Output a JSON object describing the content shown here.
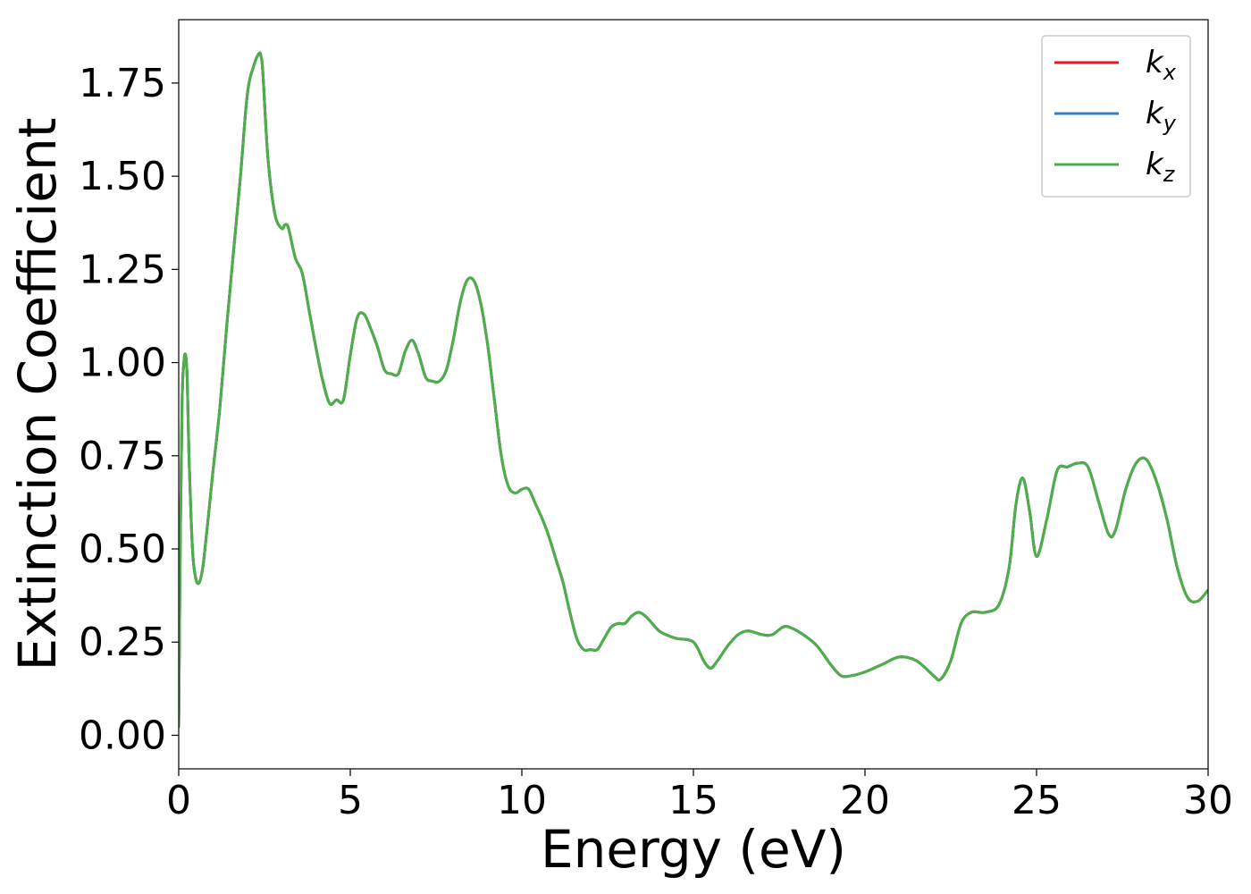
{
  "chart_data": {
    "type": "line",
    "title": "",
    "xlabel": "Energy (eV)",
    "ylabel": "Extinction Coefficient",
    "xlim": [
      0,
      30
    ],
    "ylim": [
      -0.09,
      1.92
    ],
    "xticks": [
      "0",
      "5",
      "10",
      "15",
      "20",
      "25",
      "30"
    ],
    "yticks": [
      "0.00",
      "0.25",
      "0.50",
      "0.75",
      "1.00",
      "1.25",
      "1.50",
      "1.75"
    ],
    "grid": false,
    "legend_position": "top-right",
    "legend": [
      {
        "base": "k",
        "sub": "x"
      },
      {
        "base": "k",
        "sub": "y"
      },
      {
        "base": "k",
        "sub": "z"
      }
    ],
    "series": [
      {
        "key": "kx",
        "color": "#e41a1c",
        "x": [
          0,
          0.05,
          0.1,
          0.15,
          0.2,
          0.25,
          0.3,
          0.4,
          0.5,
          0.6,
          0.7,
          0.8,
          0.9,
          1.0,
          1.2,
          1.4,
          1.6,
          1.8,
          2.0,
          2.2,
          2.35,
          2.4,
          2.45,
          2.6,
          2.8,
          3.0,
          3.1,
          3.2,
          3.4,
          3.6,
          3.8,
          4.0,
          4.2,
          4.4,
          4.6,
          4.8,
          5.0,
          5.2,
          5.4,
          5.6,
          5.8,
          6.0,
          6.2,
          6.4,
          6.6,
          6.8,
          7.0,
          7.2,
          7.4,
          7.6,
          7.8,
          8.0,
          8.2,
          8.4,
          8.6,
          8.8,
          9.0,
          9.2,
          9.4,
          9.6,
          9.8,
          10.0,
          10.2,
          10.4,
          10.6,
          10.8,
          11.0,
          11.2,
          11.4,
          11.6,
          11.8,
          12.0,
          12.2,
          12.4,
          12.6,
          12.8,
          13.0,
          13.2,
          13.4,
          13.6,
          13.8,
          14.0,
          14.2,
          14.5,
          15.0,
          15.3,
          15.5,
          15.7,
          16.0,
          16.3,
          16.6,
          17.0,
          17.3,
          17.6,
          17.8,
          18.2,
          18.6,
          19.0,
          19.3,
          19.6,
          20.0,
          20.5,
          21.0,
          21.5,
          22.0,
          22.2,
          22.5,
          22.8,
          23.1,
          23.5,
          23.9,
          24.2,
          24.4,
          24.6,
          24.8,
          25.0,
          25.3,
          25.6,
          25.9,
          26.2,
          26.5,
          26.8,
          27.1,
          27.3,
          27.6,
          27.9,
          28.2,
          28.5,
          28.8,
          29.1,
          29.4,
          29.7,
          30.0
        ],
        "y": [
          0.02,
          0.55,
          0.9,
          1.0,
          1.02,
          0.95,
          0.75,
          0.5,
          0.42,
          0.41,
          0.45,
          0.53,
          0.62,
          0.71,
          0.88,
          1.1,
          1.3,
          1.5,
          1.72,
          1.8,
          1.83,
          1.82,
          1.78,
          1.55,
          1.4,
          1.36,
          1.37,
          1.36,
          1.28,
          1.24,
          1.14,
          1.04,
          0.95,
          0.89,
          0.9,
          0.9,
          1.02,
          1.12,
          1.13,
          1.09,
          1.04,
          0.98,
          0.97,
          0.97,
          1.03,
          1.06,
          1.02,
          0.96,
          0.95,
          0.95,
          0.98,
          1.06,
          1.16,
          1.22,
          1.22,
          1.16,
          1.05,
          0.9,
          0.75,
          0.67,
          0.65,
          0.66,
          0.66,
          0.62,
          0.58,
          0.53,
          0.47,
          0.41,
          0.33,
          0.26,
          0.23,
          0.23,
          0.23,
          0.26,
          0.29,
          0.3,
          0.3,
          0.32,
          0.33,
          0.32,
          0.3,
          0.28,
          0.27,
          0.26,
          0.25,
          0.2,
          0.18,
          0.2,
          0.24,
          0.27,
          0.28,
          0.27,
          0.27,
          0.29,
          0.29,
          0.27,
          0.24,
          0.19,
          0.16,
          0.16,
          0.17,
          0.19,
          0.21,
          0.2,
          0.16,
          0.15,
          0.2,
          0.3,
          0.33,
          0.33,
          0.35,
          0.45,
          0.62,
          0.69,
          0.6,
          0.48,
          0.58,
          0.71,
          0.72,
          0.73,
          0.72,
          0.63,
          0.54,
          0.55,
          0.66,
          0.73,
          0.74,
          0.68,
          0.58,
          0.45,
          0.37,
          0.36,
          0.39
        ]
      },
      {
        "key": "ky",
        "color": "#377eb8",
        "x": [
          0,
          0.05,
          0.1,
          0.15,
          0.2,
          0.25,
          0.3,
          0.4,
          0.5,
          0.6,
          0.7,
          0.8,
          0.9,
          1.0,
          1.2,
          1.4,
          1.6,
          1.8,
          2.0,
          2.2,
          2.35,
          2.4,
          2.45,
          2.6,
          2.8,
          3.0,
          3.1,
          3.2,
          3.4,
          3.6,
          3.8,
          4.0,
          4.2,
          4.4,
          4.6,
          4.8,
          5.0,
          5.2,
          5.4,
          5.6,
          5.8,
          6.0,
          6.2,
          6.4,
          6.6,
          6.8,
          7.0,
          7.2,
          7.4,
          7.6,
          7.8,
          8.0,
          8.2,
          8.4,
          8.6,
          8.8,
          9.0,
          9.2,
          9.4,
          9.6,
          9.8,
          10.0,
          10.2,
          10.4,
          10.6,
          10.8,
          11.0,
          11.2,
          11.4,
          11.6,
          11.8,
          12.0,
          12.2,
          12.4,
          12.6,
          12.8,
          13.0,
          13.2,
          13.4,
          13.6,
          13.8,
          14.0,
          14.2,
          14.5,
          15.0,
          15.3,
          15.5,
          15.7,
          16.0,
          16.3,
          16.6,
          17.0,
          17.3,
          17.6,
          17.8,
          18.2,
          18.6,
          19.0,
          19.3,
          19.6,
          20.0,
          20.5,
          21.0,
          21.5,
          22.0,
          22.2,
          22.5,
          22.8,
          23.1,
          23.5,
          23.9,
          24.2,
          24.4,
          24.6,
          24.8,
          25.0,
          25.3,
          25.6,
          25.9,
          26.2,
          26.5,
          26.8,
          27.1,
          27.3,
          27.6,
          27.9,
          28.2,
          28.5,
          28.8,
          29.1,
          29.4,
          29.7,
          30.0
        ],
        "y": [
          0.02,
          0.55,
          0.9,
          1.0,
          1.02,
          0.95,
          0.75,
          0.5,
          0.42,
          0.41,
          0.45,
          0.53,
          0.62,
          0.71,
          0.88,
          1.1,
          1.3,
          1.5,
          1.72,
          1.8,
          1.83,
          1.82,
          1.78,
          1.55,
          1.4,
          1.36,
          1.37,
          1.36,
          1.28,
          1.24,
          1.14,
          1.04,
          0.95,
          0.89,
          0.9,
          0.9,
          1.02,
          1.12,
          1.13,
          1.09,
          1.04,
          0.98,
          0.97,
          0.97,
          1.03,
          1.06,
          1.02,
          0.96,
          0.95,
          0.95,
          0.98,
          1.06,
          1.16,
          1.22,
          1.22,
          1.16,
          1.05,
          0.9,
          0.75,
          0.67,
          0.65,
          0.66,
          0.66,
          0.62,
          0.58,
          0.53,
          0.47,
          0.41,
          0.33,
          0.26,
          0.23,
          0.23,
          0.23,
          0.26,
          0.29,
          0.3,
          0.3,
          0.32,
          0.33,
          0.32,
          0.3,
          0.28,
          0.27,
          0.26,
          0.25,
          0.2,
          0.18,
          0.2,
          0.24,
          0.27,
          0.28,
          0.27,
          0.27,
          0.29,
          0.29,
          0.27,
          0.24,
          0.19,
          0.16,
          0.16,
          0.17,
          0.19,
          0.21,
          0.2,
          0.16,
          0.15,
          0.2,
          0.3,
          0.33,
          0.33,
          0.35,
          0.45,
          0.62,
          0.69,
          0.6,
          0.48,
          0.58,
          0.71,
          0.72,
          0.73,
          0.72,
          0.63,
          0.54,
          0.55,
          0.66,
          0.73,
          0.74,
          0.68,
          0.58,
          0.45,
          0.37,
          0.36,
          0.39
        ]
      },
      {
        "key": "kz",
        "color": "#4daf4a",
        "x": [
          0,
          0.05,
          0.1,
          0.15,
          0.2,
          0.25,
          0.3,
          0.4,
          0.5,
          0.6,
          0.7,
          0.8,
          0.9,
          1.0,
          1.2,
          1.4,
          1.6,
          1.8,
          2.0,
          2.2,
          2.35,
          2.4,
          2.45,
          2.6,
          2.8,
          3.0,
          3.1,
          3.2,
          3.4,
          3.6,
          3.8,
          4.0,
          4.2,
          4.4,
          4.6,
          4.8,
          5.0,
          5.2,
          5.4,
          5.6,
          5.8,
          6.0,
          6.2,
          6.4,
          6.6,
          6.8,
          7.0,
          7.2,
          7.4,
          7.6,
          7.8,
          8.0,
          8.2,
          8.4,
          8.6,
          8.8,
          9.0,
          9.2,
          9.4,
          9.6,
          9.8,
          10.0,
          10.2,
          10.4,
          10.6,
          10.8,
          11.0,
          11.2,
          11.4,
          11.6,
          11.8,
          12.0,
          12.2,
          12.4,
          12.6,
          12.8,
          13.0,
          13.2,
          13.4,
          13.6,
          13.8,
          14.0,
          14.2,
          14.5,
          15.0,
          15.3,
          15.5,
          15.7,
          16.0,
          16.3,
          16.6,
          17.0,
          17.3,
          17.6,
          17.8,
          18.2,
          18.6,
          19.0,
          19.3,
          19.6,
          20.0,
          20.5,
          21.0,
          21.5,
          22.0,
          22.2,
          22.5,
          22.8,
          23.1,
          23.5,
          23.9,
          24.2,
          24.4,
          24.6,
          24.8,
          25.0,
          25.3,
          25.6,
          25.9,
          26.2,
          26.5,
          26.8,
          27.1,
          27.3,
          27.6,
          27.9,
          28.2,
          28.5,
          28.8,
          29.1,
          29.4,
          29.7,
          30.0
        ],
        "y": [
          0.02,
          0.55,
          0.9,
          1.0,
          1.02,
          0.95,
          0.75,
          0.5,
          0.42,
          0.41,
          0.45,
          0.53,
          0.62,
          0.71,
          0.88,
          1.1,
          1.3,
          1.5,
          1.72,
          1.8,
          1.83,
          1.82,
          1.78,
          1.55,
          1.4,
          1.36,
          1.37,
          1.36,
          1.28,
          1.24,
          1.14,
          1.04,
          0.95,
          0.89,
          0.9,
          0.9,
          1.02,
          1.12,
          1.13,
          1.09,
          1.04,
          0.98,
          0.97,
          0.97,
          1.03,
          1.06,
          1.02,
          0.96,
          0.95,
          0.95,
          0.98,
          1.06,
          1.16,
          1.22,
          1.22,
          1.16,
          1.05,
          0.9,
          0.75,
          0.67,
          0.65,
          0.66,
          0.66,
          0.62,
          0.58,
          0.53,
          0.47,
          0.41,
          0.33,
          0.26,
          0.23,
          0.23,
          0.23,
          0.26,
          0.29,
          0.3,
          0.3,
          0.32,
          0.33,
          0.32,
          0.3,
          0.28,
          0.27,
          0.26,
          0.25,
          0.2,
          0.18,
          0.2,
          0.24,
          0.27,
          0.28,
          0.27,
          0.27,
          0.29,
          0.29,
          0.27,
          0.24,
          0.19,
          0.16,
          0.16,
          0.17,
          0.19,
          0.21,
          0.2,
          0.16,
          0.15,
          0.2,
          0.3,
          0.33,
          0.33,
          0.35,
          0.45,
          0.62,
          0.69,
          0.6,
          0.48,
          0.58,
          0.71,
          0.72,
          0.73,
          0.72,
          0.63,
          0.54,
          0.55,
          0.66,
          0.73,
          0.74,
          0.68,
          0.58,
          0.45,
          0.37,
          0.36,
          0.39
        ]
      }
    ]
  }
}
